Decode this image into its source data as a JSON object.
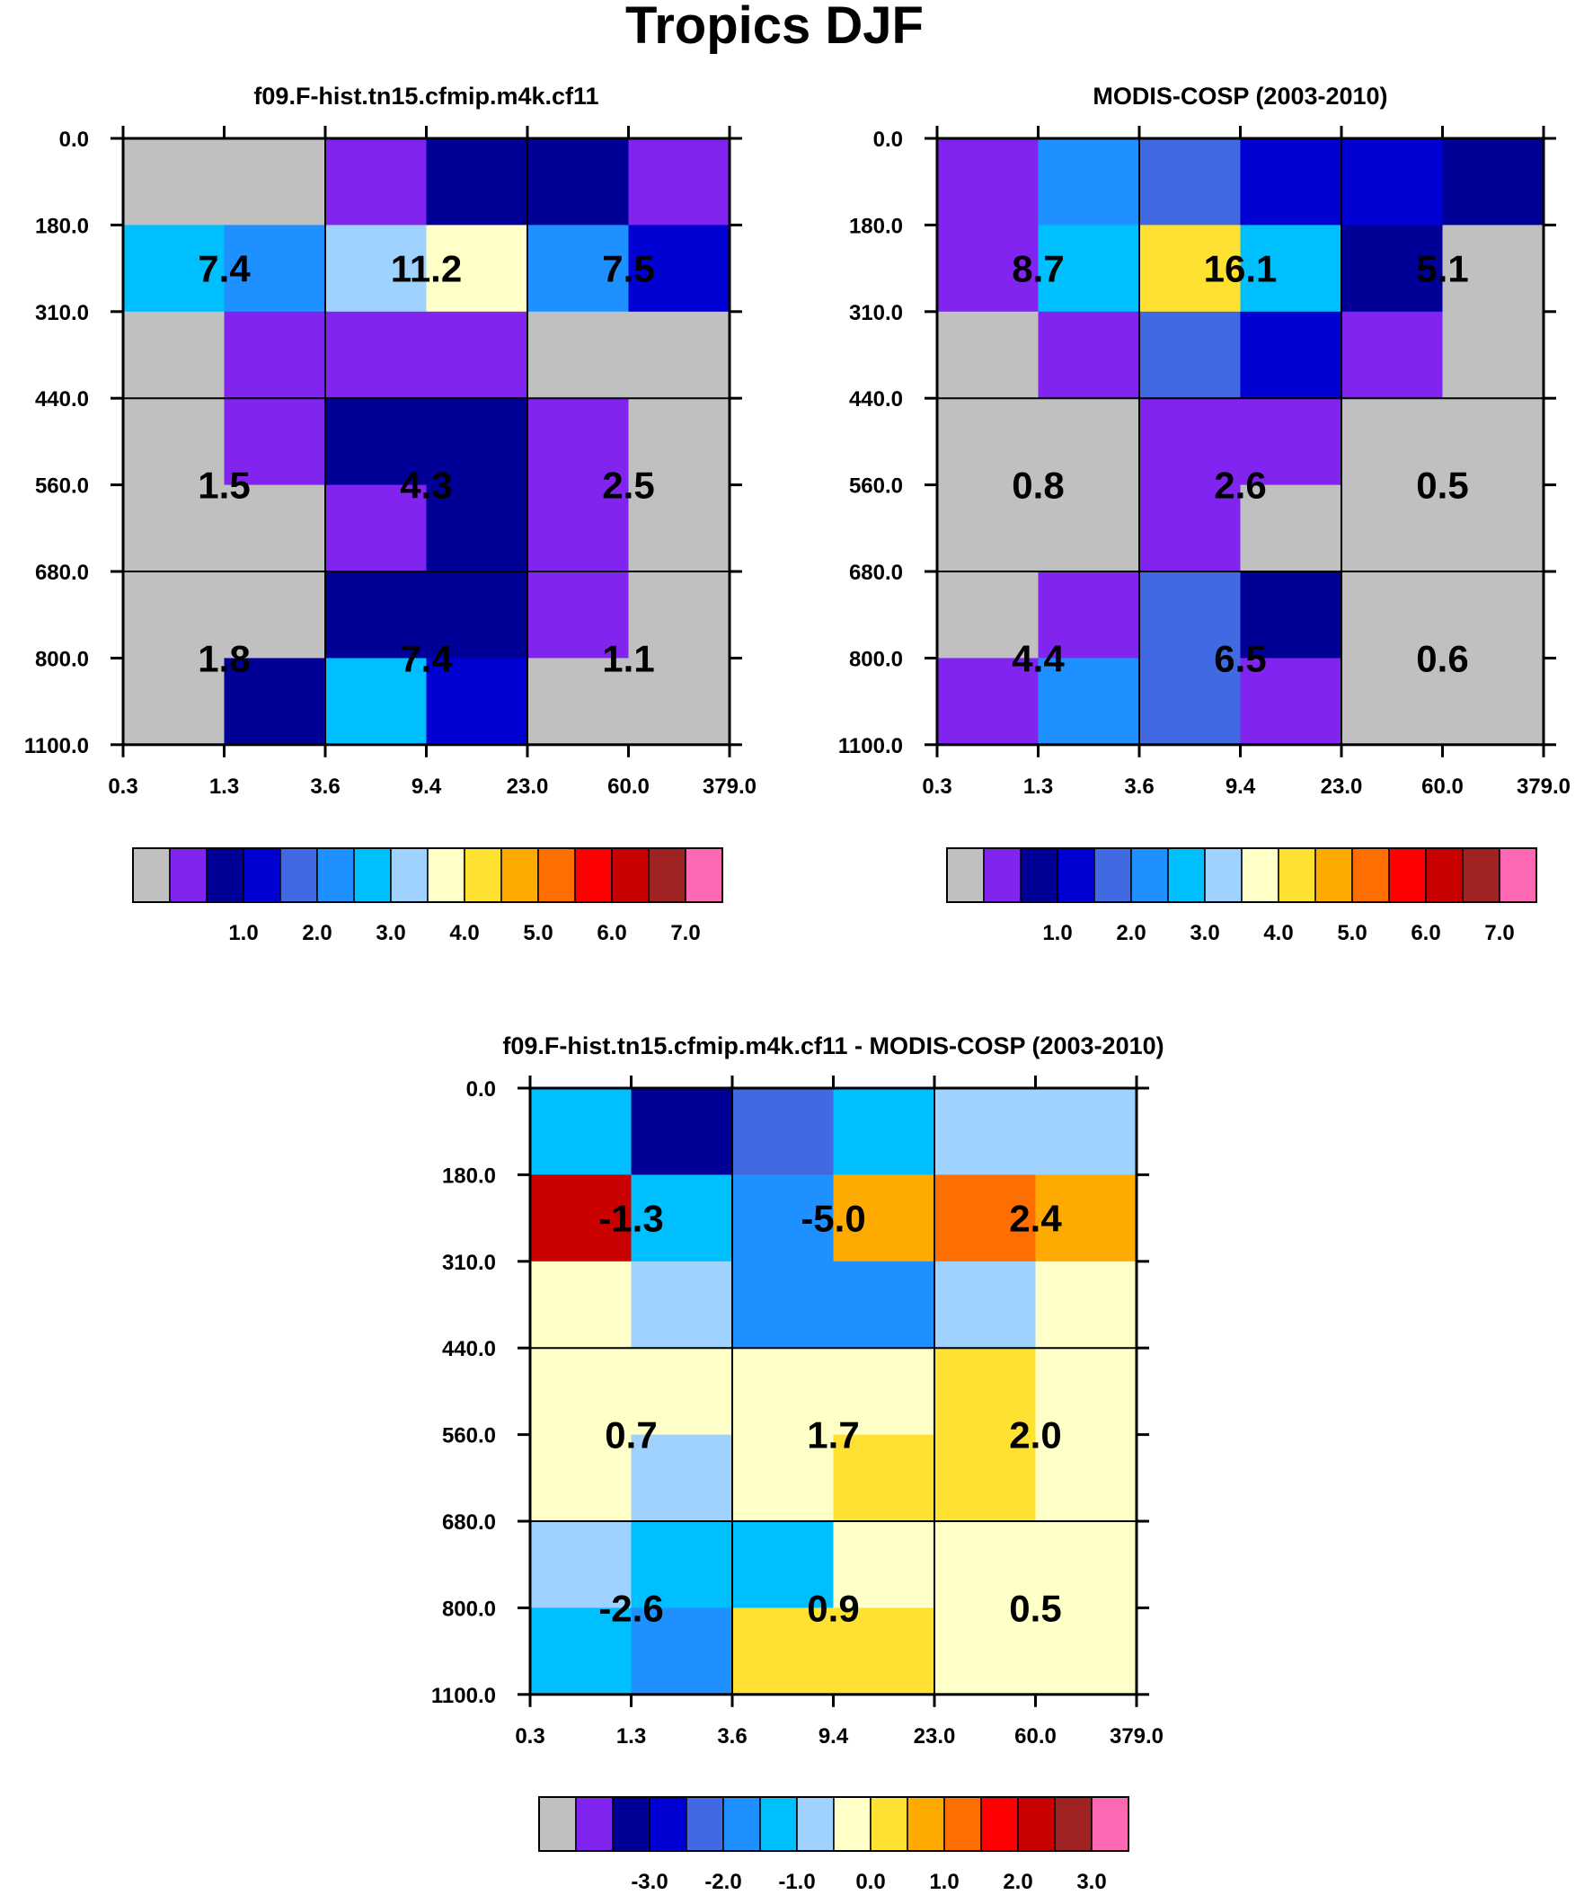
{
  "figure_title": "Tropics DJF",
  "chart_data": [
    {
      "type": "heatmap",
      "title": "f09.F-hist.tn15.cfmip.m4k.cf11",
      "xlabel": "",
      "ylabel": "",
      "x_ticks": [
        "0.3",
        "1.3",
        "3.6",
        "9.4",
        "23.0",
        "60.0",
        "379.0"
      ],
      "y_ticks": [
        "0.0",
        "180.0",
        "310.0",
        "440.0",
        "560.0",
        "680.0",
        "800.0",
        "1100.0"
      ],
      "grid": "3x3 group boxes",
      "cells": [
        [
          0,
          0,
          1,
          2,
          2,
          1
        ],
        [
          6,
          5,
          7,
          8,
          5,
          3
        ],
        [
          0,
          1,
          1,
          1,
          0,
          0
        ],
        [
          0,
          1,
          2,
          2,
          1,
          0
        ],
        [
          0,
          0,
          1,
          2,
          1,
          0
        ],
        [
          0,
          0,
          2,
          2,
          1,
          0
        ],
        [
          0,
          2,
          6,
          3,
          0,
          0
        ]
      ],
      "group_totals": [
        [
          "7.4",
          "11.2",
          "7.5"
        ],
        [
          "1.5",
          "4.3",
          "2.5"
        ],
        [
          "1.8",
          "7.4",
          "1.1"
        ]
      ],
      "colorbar": {
        "labels": [
          "1.0",
          "2.0",
          "3.0",
          "4.0",
          "5.0",
          "6.0",
          "7.0"
        ]
      }
    },
    {
      "type": "heatmap",
      "title": "MODIS-COSP (2003-2010)",
      "xlabel": "",
      "ylabel": "",
      "x_ticks": [
        "0.3",
        "1.3",
        "3.6",
        "9.4",
        "23.0",
        "60.0",
        "379.0"
      ],
      "y_ticks": [
        "0.0",
        "180.0",
        "310.0",
        "440.0",
        "560.0",
        "680.0",
        "800.0",
        "1100.0"
      ],
      "grid": "3x3 group boxes",
      "cells": [
        [
          1,
          5,
          4,
          3,
          3,
          2
        ],
        [
          1,
          6,
          9,
          6,
          2,
          0
        ],
        [
          0,
          1,
          4,
          3,
          1,
          0
        ],
        [
          0,
          0,
          1,
          1,
          0,
          0
        ],
        [
          0,
          0,
          1,
          0,
          0,
          0
        ],
        [
          0,
          1,
          4,
          2,
          0,
          0
        ],
        [
          1,
          5,
          4,
          1,
          0,
          0
        ]
      ],
      "group_totals": [
        [
          "8.7",
          "16.1",
          "5.1"
        ],
        [
          "0.8",
          "2.6",
          "0.5"
        ],
        [
          "4.4",
          "6.5",
          "0.6"
        ]
      ],
      "colorbar": {
        "labels": [
          "1.0",
          "2.0",
          "3.0",
          "4.0",
          "5.0",
          "6.0",
          "7.0"
        ]
      }
    },
    {
      "type": "heatmap",
      "title": "f09.F-hist.tn15.cfmip.m4k.cf11 - MODIS-COSP (2003-2010)",
      "xlabel": "",
      "ylabel": "",
      "x_ticks": [
        "0.3",
        "1.3",
        "3.6",
        "9.4",
        "23.0",
        "60.0",
        "379.0"
      ],
      "y_ticks": [
        "0.0",
        "180.0",
        "310.0",
        "440.0",
        "560.0",
        "680.0",
        "800.0",
        "1100.0"
      ],
      "grid": "3x3 group boxes",
      "cells": [
        [
          6,
          2,
          4,
          6,
          7,
          7
        ],
        [
          13,
          6,
          5,
          10,
          11,
          10
        ],
        [
          8,
          7,
          5,
          5,
          7,
          8
        ],
        [
          8,
          8,
          8,
          8,
          9,
          8
        ],
        [
          8,
          7,
          8,
          9,
          9,
          8
        ],
        [
          7,
          6,
          6,
          8,
          8,
          8
        ],
        [
          6,
          5,
          9,
          9,
          8,
          8
        ]
      ],
      "group_totals": [
        [
          "-1.3",
          "-5.0",
          "2.4"
        ],
        [
          "0.7",
          "1.7",
          "2.0"
        ],
        [
          "-2.6",
          "0.9",
          "0.5"
        ]
      ],
      "colorbar": {
        "labels": [
          "-3.0",
          "-2.0",
          "-1.0",
          "0.0",
          "1.0",
          "2.0",
          "3.0"
        ]
      }
    }
  ],
  "palette": [
    "#c0c0c0",
    "#8224f0",
    "#000096",
    "#0000d2",
    "#4169e1",
    "#1e90ff",
    "#00bfff",
    "#a0d2ff",
    "#ffffc8",
    "#ffe132",
    "#ffaa00",
    "#ff6e00",
    "#ff0000",
    "#c80000",
    "#a02323",
    "#ff69b4"
  ]
}
